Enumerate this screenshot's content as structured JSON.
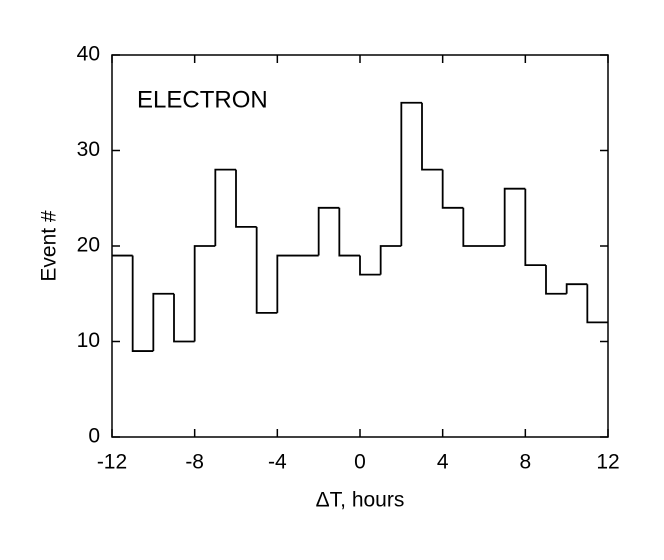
{
  "chart_data": {
    "type": "histogram",
    "annotation": "ELECTRON",
    "x_label": "ΔT, hours",
    "y_label": "Event #",
    "bins": [
      -12,
      -11,
      -10,
      -9,
      -8,
      -7,
      -6,
      -5,
      -4,
      -3,
      -2,
      -1,
      0,
      1,
      2,
      3,
      4,
      5,
      6,
      7,
      8,
      9,
      10,
      11,
      12
    ],
    "values": [
      19,
      9,
      15,
      10,
      20,
      28,
      22,
      13,
      19,
      19,
      24,
      19,
      17,
      20,
      35,
      28,
      24,
      20,
      20,
      26,
      18,
      15,
      16,
      12
    ],
    "color": "#000000",
    "xlim": [
      -12,
      12
    ],
    "xticks": [
      -12,
      -8,
      -4,
      0,
      4,
      8,
      12
    ],
    "ylim": [
      0,
      40
    ],
    "yticks": [
      0,
      10,
      20,
      30,
      40
    ]
  }
}
